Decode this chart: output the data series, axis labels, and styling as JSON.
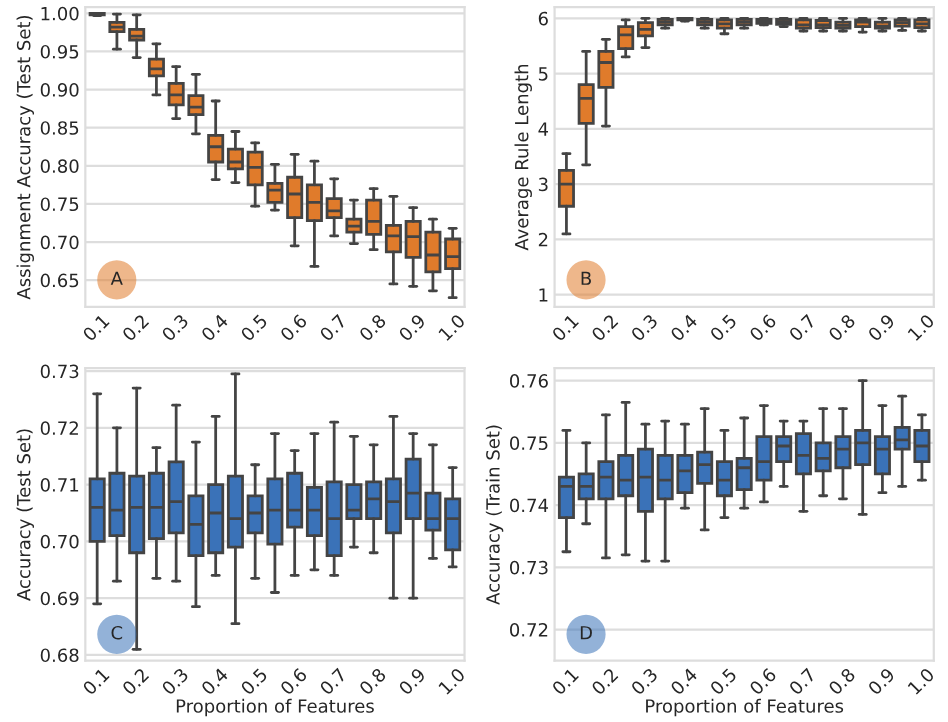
{
  "chart_data": [
    {
      "type": "box",
      "ylabel": "Assignment Accuracy (Test Set)",
      "annotations": [
        "A"
      ],
      "grid": "y",
      "color": "#e07b2b",
      "categories": [
        "0.1",
        null,
        "0.2",
        null,
        "0.3",
        null,
        "0.4",
        null,
        "0.5",
        null,
        "0.6",
        null,
        "0.7",
        null,
        "0.8",
        null,
        "0.9",
        null,
        "1.0"
      ],
      "ylim": [
        0.615,
        1.008
      ],
      "yticks": [
        0.65,
        {
          "value": 0.7,
          "label": "0.70"
        },
        0.75,
        {
          "value": 0.8,
          "label": "0.80"
        },
        0.85,
        {
          "value": 0.9,
          "label": "0.90"
        },
        0.95,
        {
          "value": 1.0,
          "label": "1.00"
        }
      ],
      "boxes": [
        {
          "low": 0.997,
          "q1": 0.998,
          "median": 0.999,
          "q3": 1.0,
          "high": 1.0
        },
        {
          "low": 0.953,
          "q1": 0.976,
          "median": 0.982,
          "q3": 0.988,
          "high": 0.999
        },
        {
          "low": 0.942,
          "q1": 0.965,
          "median": 0.97,
          "q3": 0.979,
          "high": 0.998
        },
        {
          "low": 0.893,
          "q1": 0.918,
          "median": 0.927,
          "q3": 0.94,
          "high": 0.96
        },
        {
          "low": 0.862,
          "q1": 0.88,
          "median": 0.893,
          "q3": 0.908,
          "high": 0.93
        },
        {
          "low": 0.842,
          "q1": 0.867,
          "median": 0.877,
          "q3": 0.892,
          "high": 0.92
        },
        {
          "low": 0.782,
          "q1": 0.805,
          "median": 0.825,
          "q3": 0.84,
          "high": 0.885
        },
        {
          "low": 0.778,
          "q1": 0.796,
          "median": 0.805,
          "q3": 0.822,
          "high": 0.845
        },
        {
          "low": 0.747,
          "q1": 0.775,
          "median": 0.798,
          "q3": 0.818,
          "high": 0.83
        },
        {
          "low": 0.742,
          "q1": 0.752,
          "median": 0.768,
          "q3": 0.777,
          "high": 0.802
        },
        {
          "low": 0.695,
          "q1": 0.732,
          "median": 0.763,
          "q3": 0.785,
          "high": 0.815
        },
        {
          "low": 0.668,
          "q1": 0.728,
          "median": 0.752,
          "q3": 0.775,
          "high": 0.806
        },
        {
          "low": 0.708,
          "q1": 0.732,
          "median": 0.741,
          "q3": 0.757,
          "high": 0.783
        },
        {
          "low": 0.698,
          "q1": 0.713,
          "median": 0.721,
          "q3": 0.73,
          "high": 0.755
        },
        {
          "low": 0.69,
          "q1": 0.71,
          "median": 0.727,
          "q3": 0.755,
          "high": 0.77
        },
        {
          "low": 0.645,
          "q1": 0.687,
          "median": 0.708,
          "q3": 0.722,
          "high": 0.76
        },
        {
          "low": 0.642,
          "q1": 0.68,
          "median": 0.707,
          "q3": 0.727,
          "high": 0.745
        },
        {
          "low": 0.636,
          "q1": 0.661,
          "median": 0.683,
          "q3": 0.713,
          "high": 0.73
        },
        {
          "low": 0.627,
          "q1": 0.665,
          "median": 0.681,
          "q3": 0.704,
          "high": 0.718
        }
      ]
    },
    {
      "type": "box",
      "ylabel": "Average Rule Length",
      "annotations": [
        "B"
      ],
      "grid": "y",
      "color": "#e07b2b",
      "categories": [
        "0.1",
        null,
        "0.2",
        null,
        "0.3",
        null,
        "0.4",
        null,
        "0.5",
        null,
        "0.6",
        null,
        "0.7",
        null,
        "0.8",
        null,
        "0.9",
        null,
        "1.0"
      ],
      "ylim": [
        0.78,
        6.2
      ],
      "yticks": [
        1,
        2,
        3,
        4,
        5,
        6
      ],
      "boxes": [
        {
          "low": 2.1,
          "q1": 2.6,
          "median": 3.0,
          "q3": 3.25,
          "high": 3.55
        },
        {
          "low": 3.35,
          "q1": 4.1,
          "median": 4.55,
          "q3": 4.8,
          "high": 5.4
        },
        {
          "low": 4.05,
          "q1": 4.75,
          "median": 5.2,
          "q3": 5.4,
          "high": 5.62
        },
        {
          "low": 5.3,
          "q1": 5.45,
          "median": 5.7,
          "q3": 5.85,
          "high": 5.97
        },
        {
          "low": 5.47,
          "q1": 5.68,
          "median": 5.8,
          "q3": 5.92,
          "high": 6.0
        },
        {
          "low": 5.82,
          "q1": 5.88,
          "median": 5.93,
          "q3": 5.98,
          "high": 6.0
        },
        {
          "low": 5.95,
          "q1": 5.97,
          "median": 5.98,
          "q3": 6.0,
          "high": 6.0
        },
        {
          "low": 5.82,
          "q1": 5.88,
          "median": 5.93,
          "q3": 5.98,
          "high": 6.0
        },
        {
          "low": 5.72,
          "q1": 5.82,
          "median": 5.9,
          "q3": 5.97,
          "high": 6.0
        },
        {
          "low": 5.82,
          "q1": 5.88,
          "median": 5.93,
          "q3": 5.98,
          "high": 6.0
        },
        {
          "low": 5.88,
          "q1": 5.91,
          "median": 5.95,
          "q3": 5.98,
          "high": 6.0
        },
        {
          "low": 5.85,
          "q1": 5.89,
          "median": 5.94,
          "q3": 5.98,
          "high": 6.0
        },
        {
          "low": 5.77,
          "q1": 5.82,
          "median": 5.88,
          "q3": 5.97,
          "high": 6.0
        },
        {
          "low": 5.77,
          "q1": 5.83,
          "median": 5.88,
          "q3": 5.96,
          "high": 6.0
        },
        {
          "low": 5.77,
          "q1": 5.82,
          "median": 5.87,
          "q3": 5.93,
          "high": 6.0
        },
        {
          "low": 5.75,
          "q1": 5.85,
          "median": 5.93,
          "q3": 5.97,
          "high": 6.0
        },
        {
          "low": 5.77,
          "q1": 5.82,
          "median": 5.86,
          "q3": 5.93,
          "high": 6.0
        },
        {
          "low": 5.78,
          "q1": 5.86,
          "median": 5.92,
          "q3": 5.97,
          "high": 6.0
        },
        {
          "low": 5.77,
          "q1": 5.83,
          "median": 5.9,
          "q3": 5.97,
          "high": 6.0
        }
      ]
    },
    {
      "type": "box",
      "ylabel": "Accuracy (Test Set)",
      "xlabel": "Proportion of Features",
      "annotations": [
        "C"
      ],
      "grid": "y",
      "color": "#3a72b8",
      "categories": [
        "0.1",
        null,
        "0.2",
        null,
        "0.3",
        null,
        "0.4",
        null,
        "0.5",
        null,
        "0.6",
        null,
        "0.7",
        null,
        "0.8",
        null,
        "0.9",
        null,
        "1.0"
      ],
      "ylim": [
        0.679,
        0.7305
      ],
      "yticks": [
        0.68,
        0.69,
        {
          "value": 0.7,
          "label": "0.70"
        },
        0.71,
        0.72,
        0.73
      ],
      "boxes": [
        {
          "low": 0.689,
          "q1": 0.7,
          "median": 0.706,
          "q3": 0.711,
          "high": 0.726
        },
        {
          "low": 0.693,
          "q1": 0.701,
          "median": 0.7055,
          "q3": 0.712,
          "high": 0.72
        },
        {
          "low": 0.681,
          "q1": 0.698,
          "median": 0.706,
          "q3": 0.7115,
          "high": 0.727
        },
        {
          "low": 0.6935,
          "q1": 0.7005,
          "median": 0.706,
          "q3": 0.712,
          "high": 0.7165
        },
        {
          "low": 0.693,
          "q1": 0.7015,
          "median": 0.707,
          "q3": 0.714,
          "high": 0.724
        },
        {
          "low": 0.6885,
          "q1": 0.6975,
          "median": 0.703,
          "q3": 0.708,
          "high": 0.7175
        },
        {
          "low": 0.694,
          "q1": 0.698,
          "median": 0.705,
          "q3": 0.71,
          "high": 0.722
        },
        {
          "low": 0.6855,
          "q1": 0.699,
          "median": 0.704,
          "q3": 0.7115,
          "high": 0.7295
        },
        {
          "low": 0.6935,
          "q1": 0.7015,
          "median": 0.705,
          "q3": 0.708,
          "high": 0.7135
        },
        {
          "low": 0.691,
          "q1": 0.6995,
          "median": 0.7055,
          "q3": 0.711,
          "high": 0.719
        },
        {
          "low": 0.694,
          "q1": 0.7025,
          "median": 0.7055,
          "q3": 0.712,
          "high": 0.716
        },
        {
          "low": 0.695,
          "q1": 0.701,
          "median": 0.7055,
          "q3": 0.7095,
          "high": 0.719
        },
        {
          "low": 0.694,
          "q1": 0.6975,
          "median": 0.704,
          "q3": 0.7105,
          "high": 0.721
        },
        {
          "low": 0.699,
          "q1": 0.704,
          "median": 0.7055,
          "q3": 0.71,
          "high": 0.7185
        },
        {
          "low": 0.698,
          "q1": 0.704,
          "median": 0.7075,
          "q3": 0.7105,
          "high": 0.717
        },
        {
          "low": 0.69,
          "q1": 0.7015,
          "median": 0.707,
          "q3": 0.711,
          "high": 0.722
        },
        {
          "low": 0.69,
          "q1": 0.704,
          "median": 0.7085,
          "q3": 0.7145,
          "high": 0.719
        },
        {
          "low": 0.697,
          "q1": 0.702,
          "median": 0.704,
          "q3": 0.7085,
          "high": 0.717
        },
        {
          "low": 0.6955,
          "q1": 0.6985,
          "median": 0.704,
          "q3": 0.7075,
          "high": 0.713
        }
      ]
    },
    {
      "type": "box",
      "ylabel": "Accuracy (Train Set)",
      "xlabel": "Proportion of Features",
      "annotations": [
        "D"
      ],
      "grid": "y",
      "color": "#3a72b8",
      "categories": [
        "0.1",
        null,
        "0.2",
        null,
        "0.3",
        null,
        "0.4",
        null,
        "0.5",
        null,
        "0.6",
        null,
        "0.7",
        null,
        "0.8",
        null,
        "0.9",
        null,
        "1.0"
      ],
      "ylim": [
        0.715,
        0.762
      ],
      "yticks": [
        0.72,
        0.73,
        0.74,
        0.75,
        0.76
      ],
      "boxes": [
        {
          "low": 0.7325,
          "q1": 0.738,
          "median": 0.743,
          "q3": 0.7445,
          "high": 0.752
        },
        {
          "low": 0.737,
          "q1": 0.741,
          "median": 0.743,
          "q3": 0.745,
          "high": 0.75
        },
        {
          "low": 0.7315,
          "q1": 0.741,
          "median": 0.7445,
          "q3": 0.747,
          "high": 0.7545
        },
        {
          "low": 0.732,
          "q1": 0.7415,
          "median": 0.744,
          "q3": 0.748,
          "high": 0.7565
        },
        {
          "low": 0.731,
          "q1": 0.739,
          "median": 0.7445,
          "q3": 0.749,
          "high": 0.753
        },
        {
          "low": 0.731,
          "q1": 0.741,
          "median": 0.744,
          "q3": 0.748,
          "high": 0.7535
        },
        {
          "low": 0.7395,
          "q1": 0.742,
          "median": 0.7455,
          "q3": 0.748,
          "high": 0.753
        },
        {
          "low": 0.736,
          "q1": 0.7435,
          "median": 0.7465,
          "q3": 0.7485,
          "high": 0.7555
        },
        {
          "low": 0.738,
          "q1": 0.7415,
          "median": 0.744,
          "q3": 0.747,
          "high": 0.752
        },
        {
          "low": 0.7395,
          "q1": 0.7425,
          "median": 0.746,
          "q3": 0.7475,
          "high": 0.754
        },
        {
          "low": 0.7405,
          "q1": 0.744,
          "median": 0.747,
          "q3": 0.751,
          "high": 0.756
        },
        {
          "low": 0.743,
          "q1": 0.747,
          "median": 0.7495,
          "q3": 0.751,
          "high": 0.7535
        },
        {
          "low": 0.739,
          "q1": 0.745,
          "median": 0.748,
          "q3": 0.7515,
          "high": 0.7535
        },
        {
          "low": 0.7415,
          "q1": 0.7455,
          "median": 0.7475,
          "q3": 0.75,
          "high": 0.7555
        },
        {
          "low": 0.741,
          "q1": 0.746,
          "median": 0.749,
          "q3": 0.751,
          "high": 0.7555
        },
        {
          "low": 0.7385,
          "q1": 0.7465,
          "median": 0.75,
          "q3": 0.752,
          "high": 0.76
        },
        {
          "low": 0.742,
          "q1": 0.745,
          "median": 0.749,
          "q3": 0.751,
          "high": 0.756
        },
        {
          "low": 0.743,
          "q1": 0.749,
          "median": 0.7505,
          "q3": 0.7525,
          "high": 0.7575
        },
        {
          "low": 0.744,
          "q1": 0.747,
          "median": 0.7495,
          "q3": 0.752,
          "high": 0.7545
        }
      ]
    }
  ]
}
